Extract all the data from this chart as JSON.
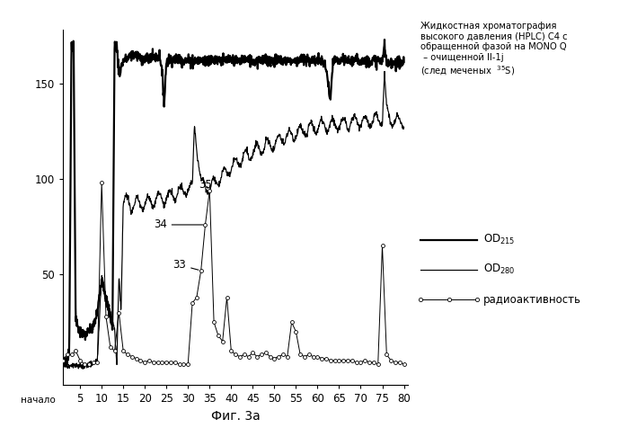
{
  "xlabel": "Фиг. 3а",
  "xlim": [
    1,
    81
  ],
  "ylim": [
    -8,
    178
  ],
  "xticks": [
    5,
    10,
    15,
    20,
    25,
    30,
    35,
    40,
    45,
    50,
    55,
    60,
    65,
    70,
    75,
    80
  ],
  "yticks": [
    50,
    100,
    150
  ],
  "annotation_text": "Жидкостная хроматография\nвысокого давления (HPLC) C4 с\nобращенной фазой на MONO Q\n – очищенной Il-1j\n(след меченых  $^{35}$S)",
  "nacalo_label": "начало",
  "bg_color": "#ffffff",
  "line_color": "#000000",
  "od215_label": "OD$_{215}$",
  "od280_label": "OD$_{280}$",
  "radio_label": "радиоактивность"
}
